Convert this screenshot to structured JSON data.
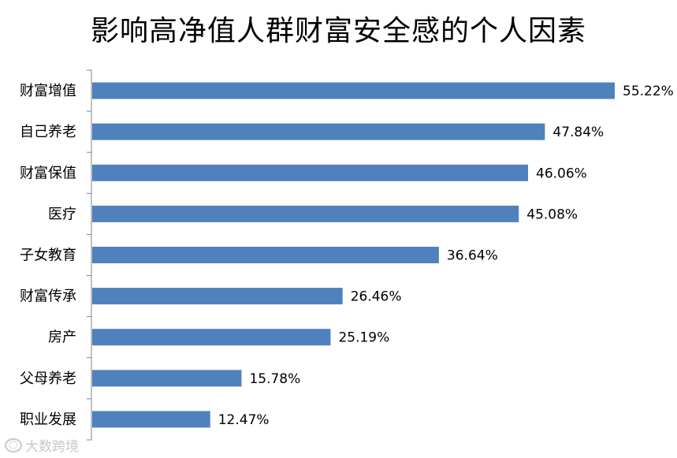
{
  "chart_data": {
    "type": "bar",
    "orientation": "horizontal",
    "title": "影响高净值人群财富安全感的个人因素",
    "categories": [
      "财富增值",
      "自己养老",
      "财富保值",
      "医疗",
      "子女教育",
      "财富传承",
      "房产",
      "父母养老",
      "职业发展"
    ],
    "values": [
      55.22,
      47.84,
      46.06,
      45.08,
      36.64,
      26.46,
      25.19,
      15.78,
      12.47
    ],
    "value_labels": [
      "55.22%",
      "47.84%",
      "46.06%",
      "45.08%",
      "36.64%",
      "26.46%",
      "25.19%",
      "15.78%",
      "12.47%"
    ],
    "xlim": [
      0,
      55.22
    ],
    "bar_color": "#4f81bd",
    "grid": false,
    "legend": "none"
  },
  "watermark": {
    "text": "大数跨境",
    "icon": "logo-icon"
  }
}
